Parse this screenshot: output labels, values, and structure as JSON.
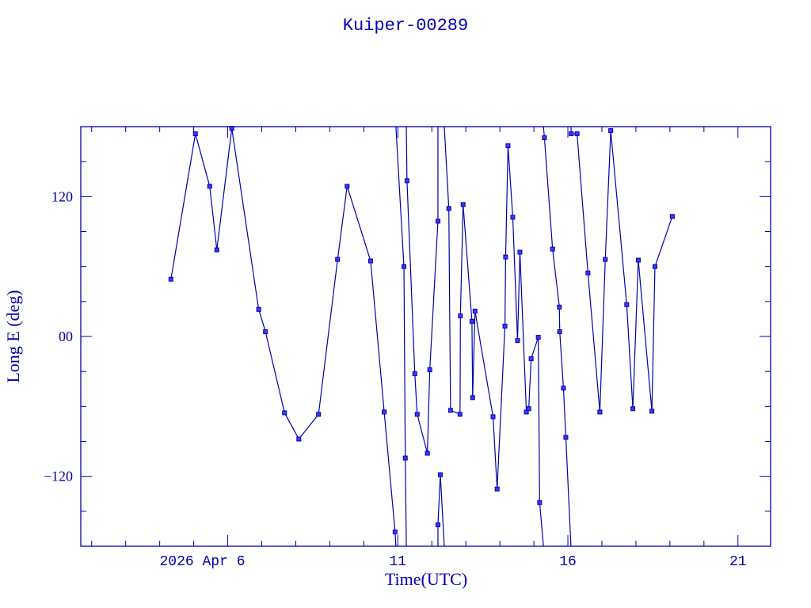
{
  "chart_data": {
    "type": "line",
    "title": "Kuiper-00289",
    "xlabel": "Time(UTC)",
    "ylabel": "Long E (deg)",
    "x_units": "day of April 2026 (UTC)",
    "xlim": [
      1.68,
      21.96
    ],
    "ylim": [
      -180,
      180
    ],
    "x_major_ticks": [
      6,
      11,
      16,
      21
    ],
    "x_tick_labels": [
      "2026 Apr  6",
      "11",
      "16",
      "21"
    ],
    "x_minor_step": 1,
    "y_major_ticks": [
      -120,
      0,
      120
    ],
    "y_tick_labels": [
      "−120",
      "00",
      "120"
    ],
    "y_minor_step": 30,
    "grid": false,
    "wraps_at": 180,
    "marker": "square",
    "color": "#0000b0",
    "x": [
      4.33,
      5.05,
      5.47,
      5.68,
      6.12,
      6.91,
      7.11,
      7.67,
      8.09,
      8.67,
      9.23,
      9.51,
      10.2,
      10.6,
      10.92,
      11.18,
      11.22,
      11.27,
      11.5,
      11.57,
      11.87,
      11.94,
      12.18,
      12.18,
      12.25,
      12.5,
      12.55,
      12.83,
      12.84,
      12.92,
      13.18,
      13.2,
      13.27,
      13.8,
      13.92,
      14.15,
      14.17,
      14.24,
      14.38,
      14.52,
      14.59,
      14.78,
      14.85,
      14.92,
      15.13,
      15.17,
      15.31,
      15.55,
      15.75,
      15.76,
      15.87,
      15.94,
      16.1,
      16.27,
      16.59,
      16.94,
      17.1,
      17.26,
      17.73,
      17.91,
      18.07,
      18.47,
      18.56,
      19.07
    ],
    "y": [
      49.1,
      173.9,
      128.9,
      74.3,
      178.6,
      23.2,
      4.1,
      -65.5,
      -88.0,
      -66.8,
      66.1,
      128.9,
      64.8,
      -64.8,
      -167.7,
      60.0,
      -104.3,
      133.6,
      -32.0,
      -66.8,
      -100.2,
      -28.6,
      98.9,
      -161.6,
      -118.6,
      109.8,
      -63.4,
      -66.8,
      17.7,
      113.2,
      13.0,
      -52.5,
      21.8,
      -68.9,
      -130.9,
      8.9,
      68.2,
      163.6,
      102.3,
      -3.4,
      72.3,
      -64.8,
      -62.0,
      -19.1,
      -0.7,
      -142.5,
      170.5,
      75.0,
      25.2,
      4.1,
      -44.3,
      -86.6,
      173.9,
      173.9,
      54.5,
      -64.8,
      66.1,
      176.6,
      27.3,
      -62.0,
      65.5,
      -64.1,
      60.0,
      103.0
    ]
  }
}
